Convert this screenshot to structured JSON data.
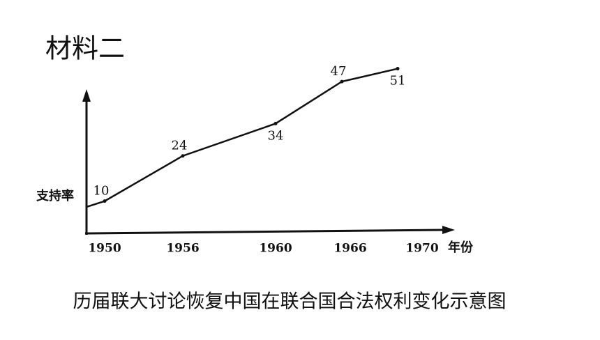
{
  "chart_data": {
    "type": "line",
    "title": "材料二",
    "caption": "历届联大讨论恢复中国在联合国合法权利变化示意图",
    "x_label": "年份",
    "y_label": "支持率",
    "categories": [
      "1950",
      "1956",
      "1960",
      "1966",
      "1970"
    ],
    "values": [
      10,
      24,
      34,
      47,
      51
    ],
    "color": "#111111",
    "ylim": [
      0,
      55
    ]
  }
}
